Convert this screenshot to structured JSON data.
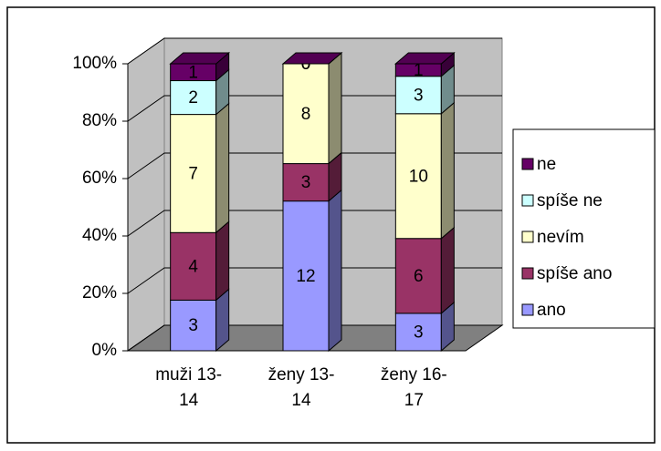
{
  "chart_data": {
    "type": "bar",
    "stacking": "percent",
    "categories": [
      "muži 13-14",
      "ženy 13-14",
      "ženy 16-17"
    ],
    "series": [
      {
        "name": "ano",
        "color": "#9999ff",
        "values": [
          3,
          12,
          3
        ]
      },
      {
        "name": "spíše ano",
        "color": "#993366",
        "values": [
          4,
          3,
          6
        ]
      },
      {
        "name": "nevím",
        "color": "#ffffcc",
        "values": [
          7,
          8,
          10
        ]
      },
      {
        "name": "spíše ne",
        "color": "#ccffff",
        "values": [
          2,
          0,
          3
        ]
      },
      {
        "name": "ne",
        "color": "#660066",
        "values": [
          1,
          0,
          1
        ]
      }
    ],
    "ylim": [
      0,
      100
    ],
    "yticks": [
      {
        "value": 0,
        "label": "0%"
      },
      {
        "value": 20,
        "label": "20%"
      },
      {
        "value": 40,
        "label": "40%"
      },
      {
        "value": 60,
        "label": "60%"
      },
      {
        "value": 80,
        "label": "80%"
      },
      {
        "value": 100,
        "label": "100%"
      }
    ],
    "grid": true,
    "legend": "right"
  }
}
